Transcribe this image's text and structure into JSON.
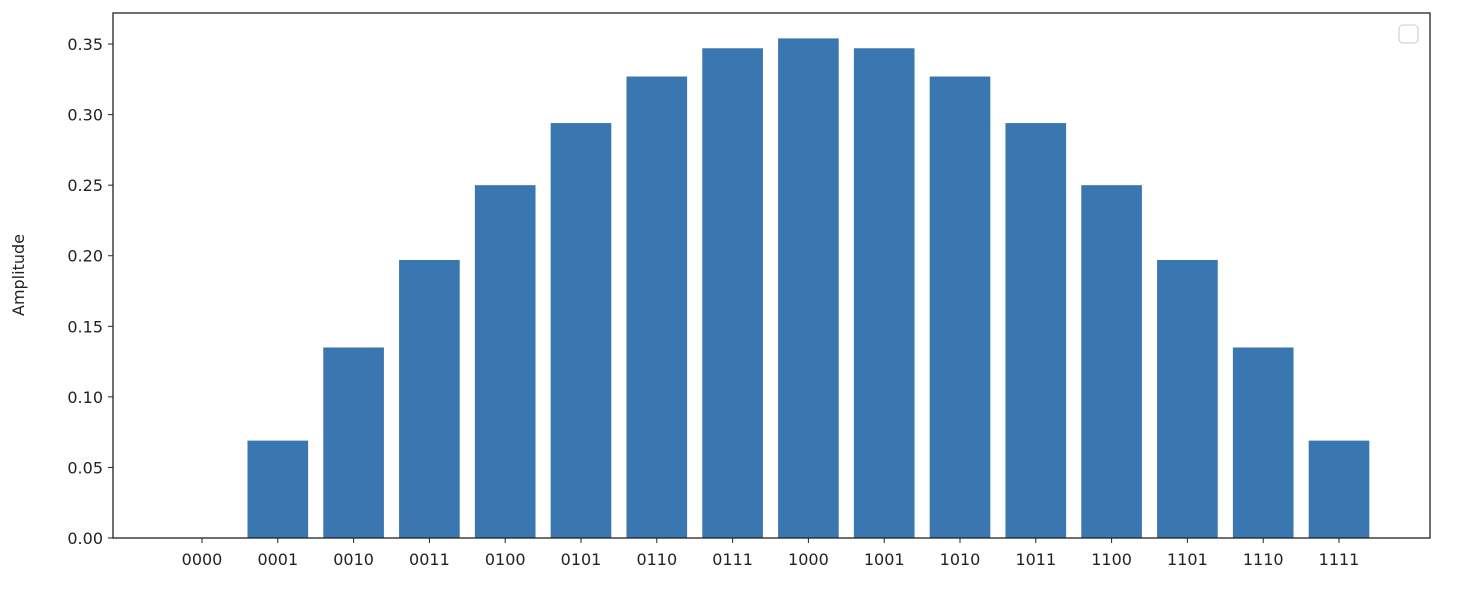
{
  "chart_data": {
    "type": "bar",
    "title": "",
    "xlabel": "",
    "ylabel": "Amplitude",
    "categories": [
      "0000",
      "0001",
      "0010",
      "0011",
      "0100",
      "0101",
      "0110",
      "0111",
      "1000",
      "1001",
      "1010",
      "1011",
      "1100",
      "1101",
      "1110",
      "1111"
    ],
    "values": [
      0.0,
      0.069,
      0.135,
      0.197,
      0.25,
      0.294,
      0.327,
      0.347,
      0.354,
      0.347,
      0.327,
      0.294,
      0.25,
      0.197,
      0.135,
      0.069
    ],
    "ylim": [
      0,
      0.372
    ],
    "yticks": [
      "0.00",
      "0.05",
      "0.10",
      "0.15",
      "0.20",
      "0.25",
      "0.30",
      "0.35"
    ],
    "grid": false,
    "legend": "top-right (empty)",
    "bar_color": "#3a76af"
  }
}
